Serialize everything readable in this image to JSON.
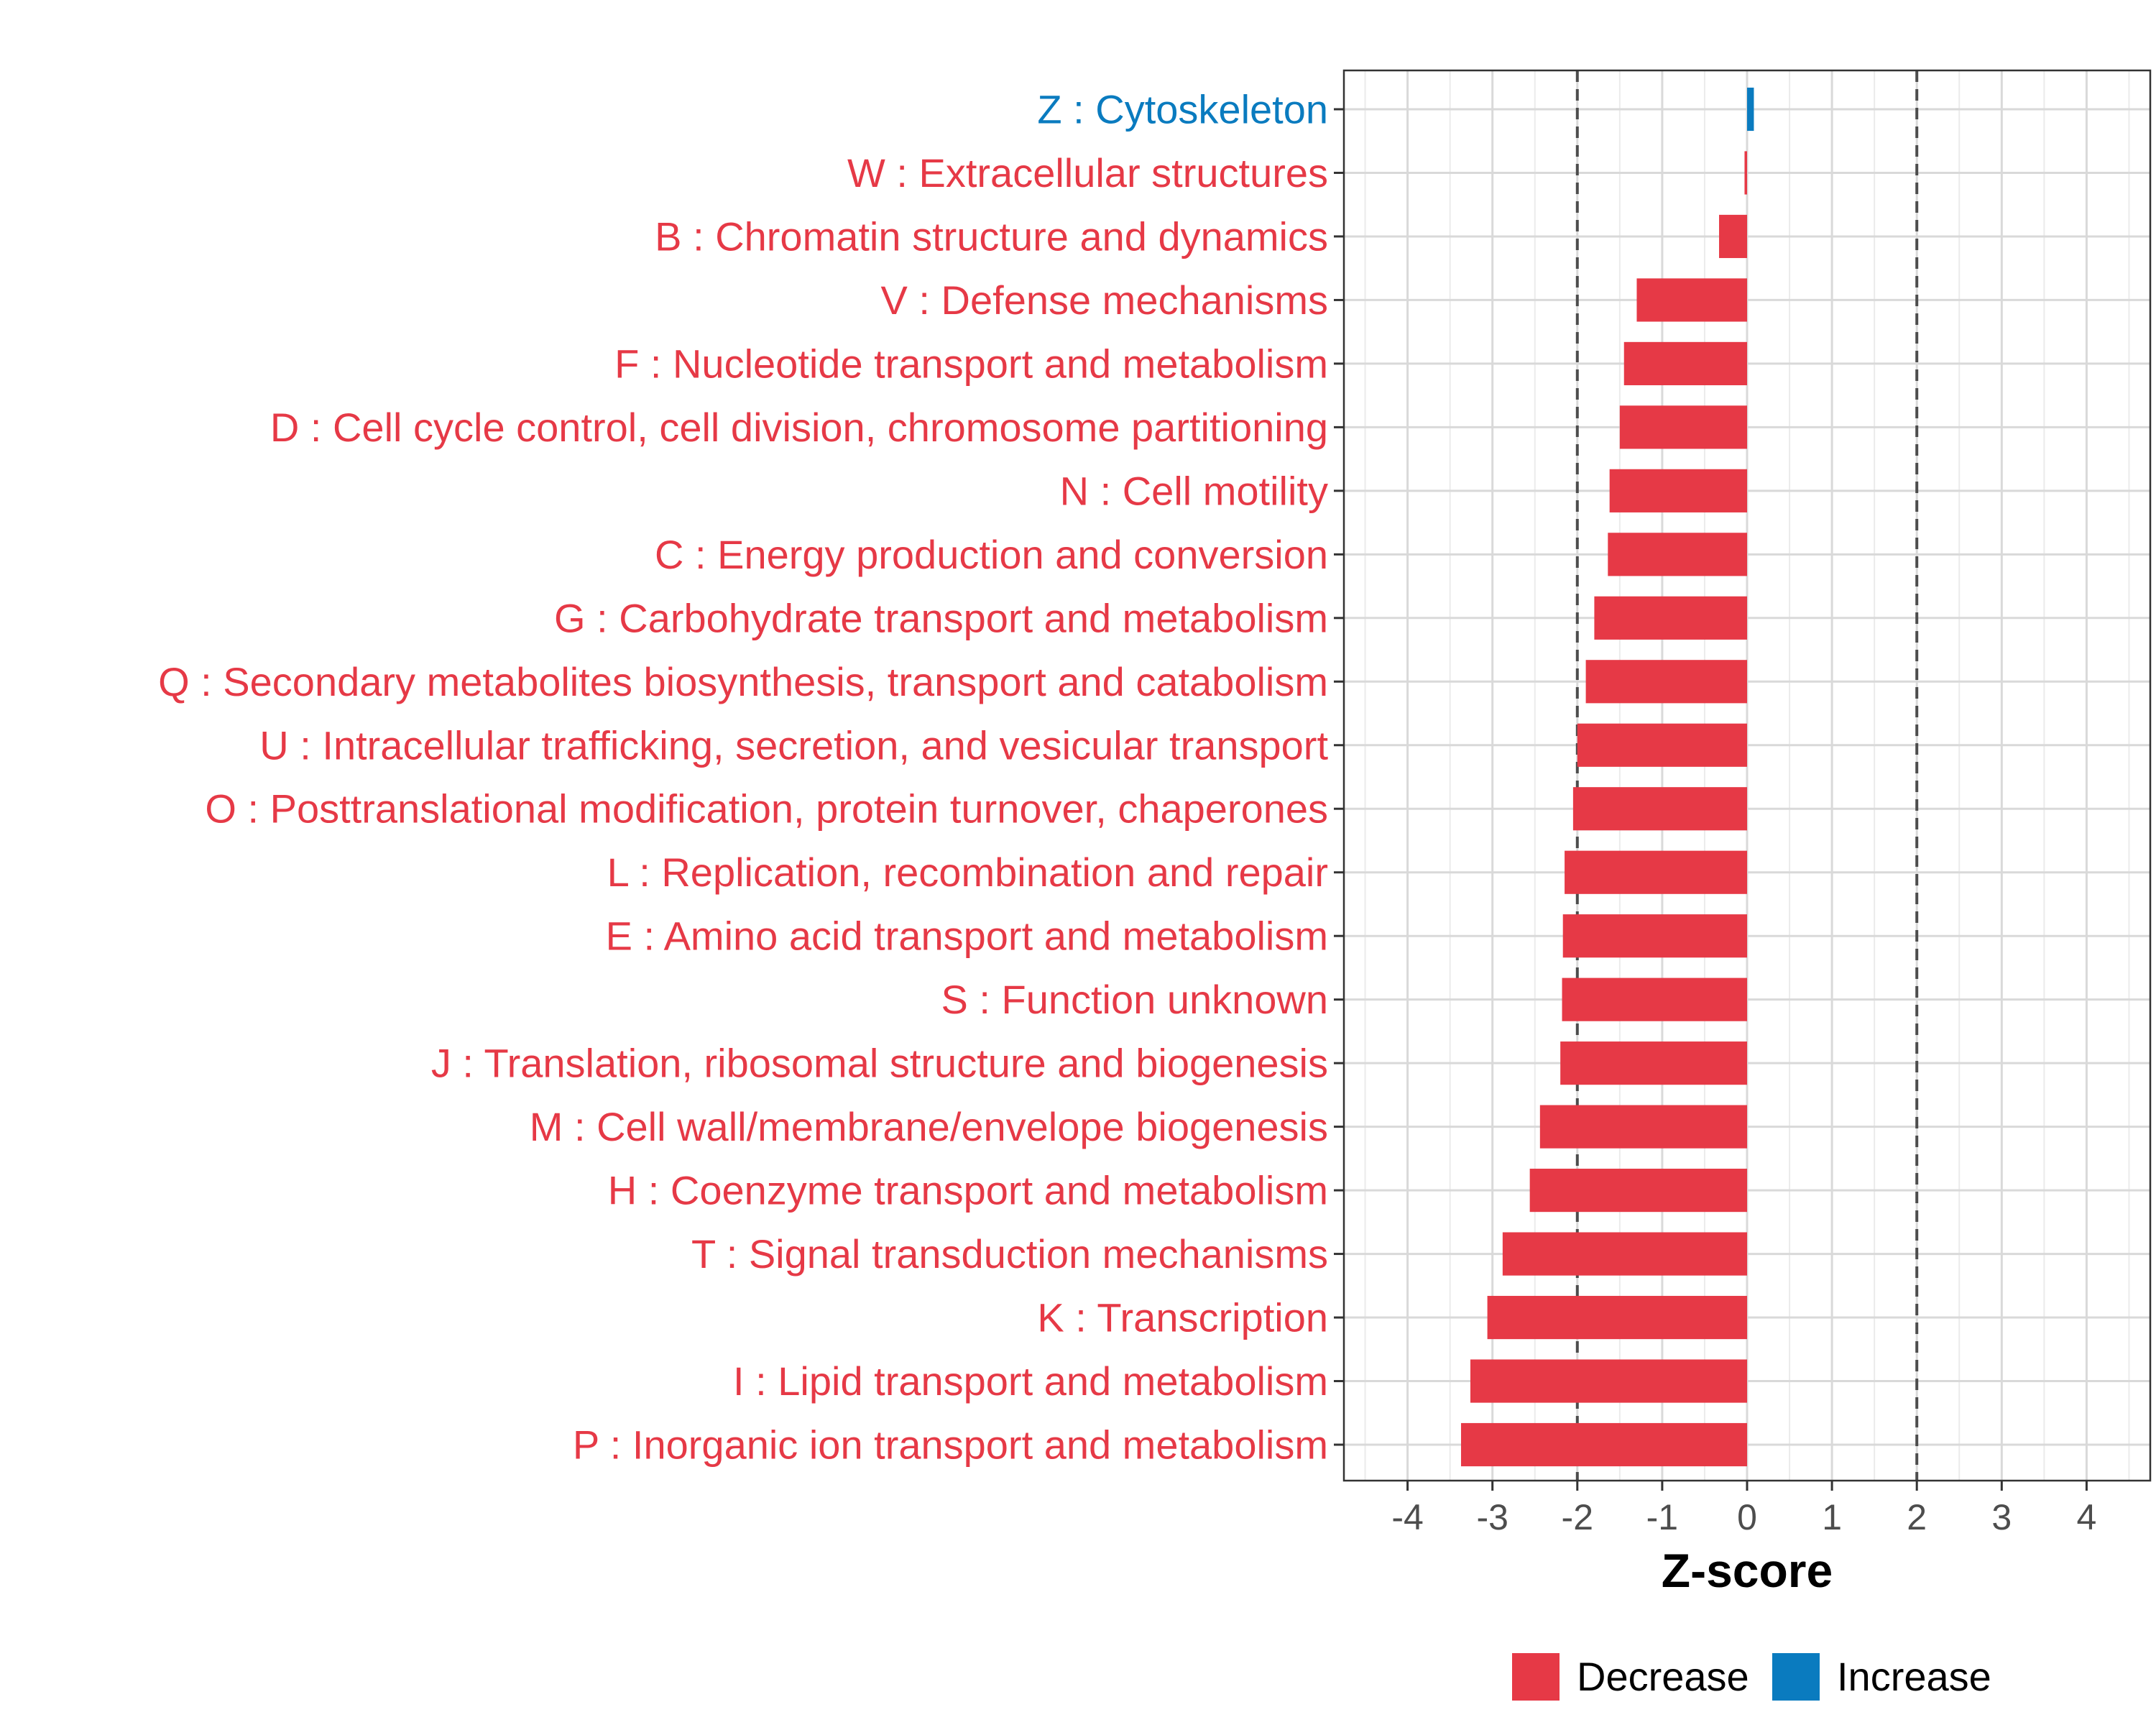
{
  "chart_data": {
    "type": "bar",
    "orientation": "horizontal",
    "xlabel": "Z-score",
    "ylabel": "",
    "xlim": [
      -4.75,
      4.75
    ],
    "x_ticks": [
      -4,
      -3,
      -2,
      -1,
      0,
      1,
      2,
      3,
      4
    ],
    "x_tick_labels": [
      "-4",
      "-3",
      "-2",
      "-1",
      "0",
      "1",
      "2",
      "3",
      "4"
    ],
    "reference_lines": [
      -2,
      2
    ],
    "grid": true,
    "legend": {
      "position": "bottom",
      "entries": [
        {
          "name": "Decrease",
          "color": "#e63946"
        },
        {
          "name": "Increase",
          "color": "#0a7bbf"
        }
      ]
    },
    "categories": [
      "Z : Cytoskeleton",
      "W : Extracellular structures",
      "B : Chromatin structure and dynamics",
      "V : Defense mechanisms",
      "F : Nucleotide transport and metabolism",
      "D : Cell cycle control, cell division, chromosome partitioning",
      "N : Cell motility",
      "C : Energy production and conversion",
      "G : Carbohydrate transport and metabolism",
      "Q : Secondary metabolites biosynthesis, transport and catabolism",
      "U : Intracellular trafficking, secretion, and vesicular transport",
      "O : Posttranslational modification, protein turnover, chaperones",
      "L : Replication, recombination and repair",
      "E : Amino acid transport and metabolism",
      "S : Function unknown",
      "J : Translation, ribosomal structure and biogenesis",
      "M : Cell wall/membrane/envelope biogenesis",
      "H : Coenzyme transport and metabolism",
      "T : Signal transduction mechanisms",
      "K : Transcription",
      "I : Lipid transport and metabolism",
      "P : Inorganic ion transport and metabolism"
    ],
    "values": [
      0.08,
      -0.03,
      -0.33,
      -1.3,
      -1.45,
      -1.5,
      -1.62,
      -1.64,
      -1.8,
      -1.9,
      -2.0,
      -2.05,
      -2.15,
      -2.17,
      -2.18,
      -2.2,
      -2.44,
      -2.56,
      -2.88,
      -3.06,
      -3.26,
      -3.37
    ],
    "groups": [
      "Increase",
      "Decrease",
      "Decrease",
      "Decrease",
      "Decrease",
      "Decrease",
      "Decrease",
      "Decrease",
      "Decrease",
      "Decrease",
      "Decrease",
      "Decrease",
      "Decrease",
      "Decrease",
      "Decrease",
      "Decrease",
      "Decrease",
      "Decrease",
      "Decrease",
      "Decrease",
      "Decrease",
      "Decrease"
    ]
  }
}
